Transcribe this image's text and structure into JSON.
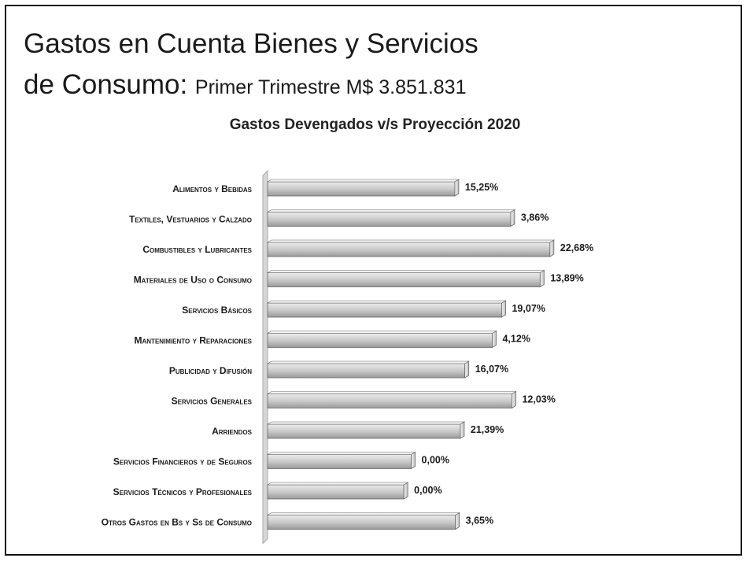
{
  "header": {
    "title_line1": "Gastos en Cuenta Bienes y Servicios",
    "title_line2": "de Consumo:",
    "subtitle": "Primer Trimestre M$ 3.851.831"
  },
  "chart_data": {
    "type": "bar",
    "orientation": "horizontal",
    "title": "Gastos Devengados v/s Proyección 2020",
    "categories": [
      "Alimentos y Bebidas",
      "Textiles, Vestuarios y Calzado",
      "Combustibles y Lubricantes",
      "Materiales de Uso o Consumo",
      "Servicios Básicos",
      "Mantenimiento y Reparaciones",
      "Publicidad y Difusión",
      "Servicios Generales",
      "Arriendos",
      "Servicios Financieros y de Seguros",
      "Servicios Técnicos y Profesionales",
      "Otros Gastos en Bs y Ss de Consumo"
    ],
    "values": [
      15.25,
      3.86,
      22.68,
      13.89,
      19.07,
      4.12,
      16.07,
      12.03,
      21.39,
      0.0,
      0.0,
      3.65
    ],
    "value_labels": [
      "15,25%",
      "3,86%",
      "22,68%",
      "13,89%",
      "19,07%",
      "4,12%",
      "16,07%",
      "12,03%",
      "21,39%",
      "0,00%",
      "0,00%",
      "3,65%"
    ],
    "bar_widths_pct": [
      15.25,
      19.8,
      23.0,
      22.2,
      19.07,
      18.3,
      16.07,
      19.9,
      15.7,
      11.7,
      11.1,
      15.3
    ],
    "colors": {
      "bar_light": "#e6e6e6",
      "bar_dark": "#a8a8a8",
      "bar_edge": "#6a6a6a",
      "axis": "#c8c8c8"
    }
  }
}
